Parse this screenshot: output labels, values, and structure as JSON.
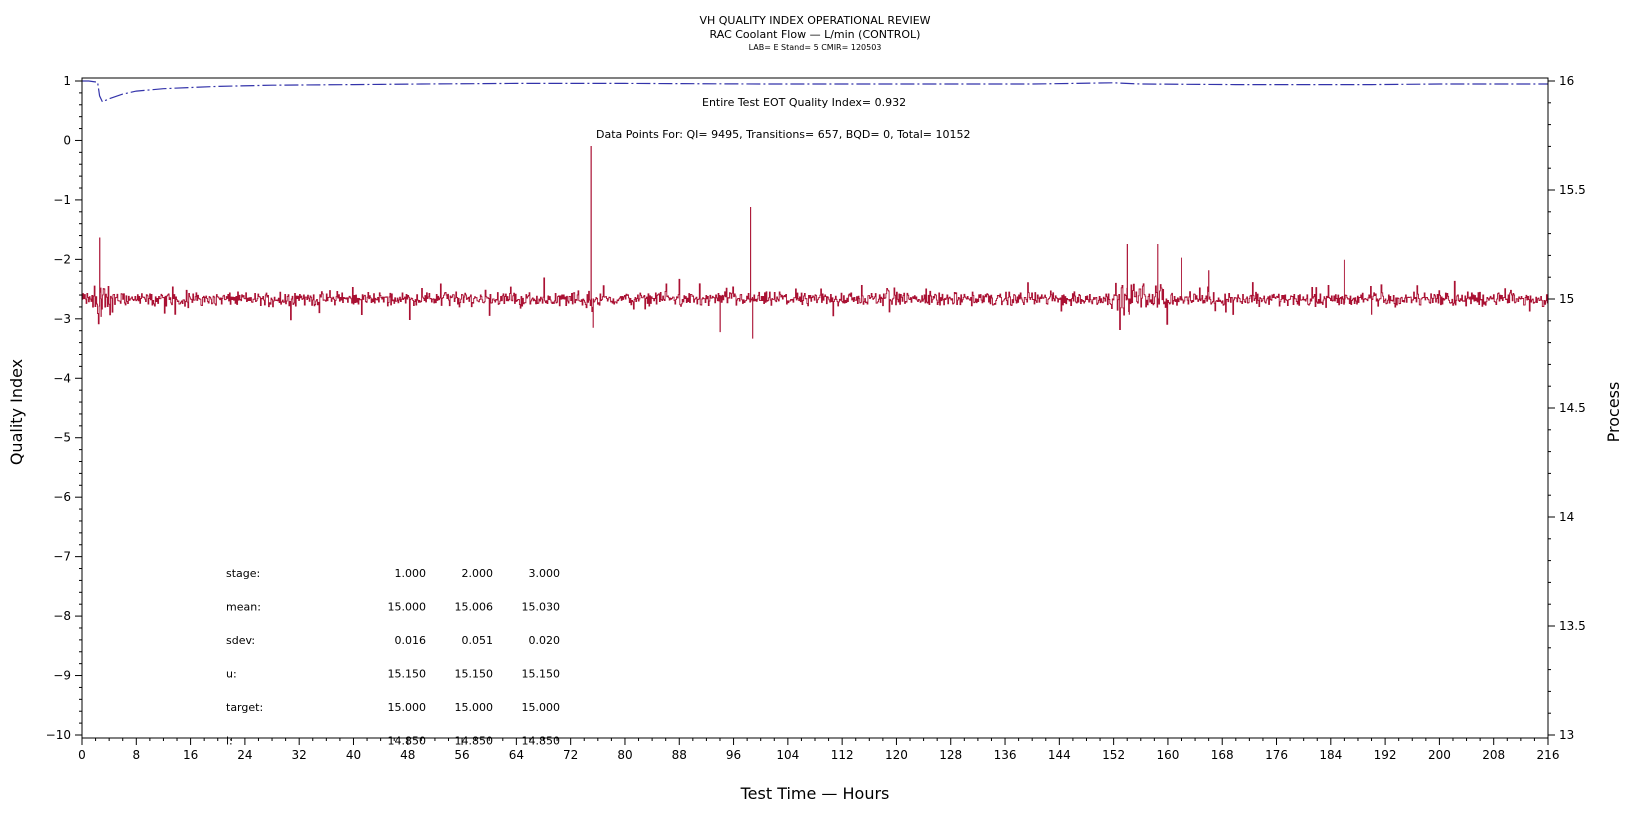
{
  "titles": {
    "line1": "VH QUALITY INDEX OPERATIONAL REVIEW",
    "line2": "RAC Coolant Flow — L/min (CONTROL)",
    "line3": "LAB= E Stand= 5 CMIR= 120503"
  },
  "annotations": {
    "eot": "Entire Test EOT Quality Index=   0.932",
    "datapoints": "Data Points For: QI=  9495, Transitions=   657, BQD=     0, Total= 10152"
  },
  "stats_table": {
    "rows": [
      {
        "label": "stage:",
        "values": [
          "1.000",
          "2.000",
          "3.000"
        ]
      },
      {
        "label": "mean:",
        "values": [
          "15.000",
          "15.006",
          "15.030"
        ]
      },
      {
        "label": "sdev:",
        "values": [
          "0.016",
          "0.051",
          "0.020"
        ]
      },
      {
        "label": "u:",
        "values": [
          "15.150",
          "15.150",
          "15.150"
        ]
      },
      {
        "label": "target:",
        "values": [
          "15.000",
          "15.000",
          "15.000"
        ]
      },
      {
        "label": "l:",
        "values": [
          "14.850",
          "14.850",
          "14.850"
        ]
      }
    ]
  },
  "chart_data": {
    "type": "line",
    "xlabel": "Test Time — Hours",
    "ylabel": "Quality Index",
    "y2label": "Process",
    "xlim": [
      0,
      216
    ],
    "ylim": [
      -10,
      1
    ],
    "y2lim": [
      13,
      16
    ],
    "x_ticks": [
      "0",
      "8",
      "16",
      "24",
      "32",
      "40",
      "48",
      "56",
      "64",
      "72",
      "80",
      "88",
      "96",
      "104",
      "112",
      "120",
      "128",
      "136",
      "144",
      "152",
      "160",
      "168",
      "176",
      "184",
      "192",
      "200",
      "208",
      "216"
    ],
    "y_ticks": [
      "1",
      "0",
      "−1",
      "−2",
      "−3",
      "−4",
      "−5",
      "−6",
      "−7",
      "−8",
      "−9",
      "−10"
    ],
    "y2_ticks": [
      "16",
      "15.5",
      "15",
      "14.5",
      "14",
      "13.5",
      "13"
    ],
    "series": [
      {
        "axis": "left",
        "color": "#3333aa",
        "style": "dash-dot",
        "points": [
          [
            0,
            1.0
          ],
          [
            1,
            1.0
          ],
          [
            2.3,
            0.98
          ],
          [
            2.6,
            0.75
          ],
          [
            3,
            0.65
          ],
          [
            4,
            0.7
          ],
          [
            6,
            0.78
          ],
          [
            8,
            0.83
          ],
          [
            12,
            0.87
          ],
          [
            16,
            0.89
          ],
          [
            20,
            0.91
          ],
          [
            28,
            0.93
          ],
          [
            40,
            0.94
          ],
          [
            50,
            0.95
          ],
          [
            64,
            0.96
          ],
          [
            80,
            0.96
          ],
          [
            100,
            0.95
          ],
          [
            120,
            0.95
          ],
          [
            140,
            0.95
          ],
          [
            146,
            0.96
          ],
          [
            152,
            0.97
          ],
          [
            156,
            0.95
          ],
          [
            170,
            0.94
          ],
          [
            190,
            0.94
          ],
          [
            200,
            0.95
          ],
          [
            216,
            0.95
          ]
        ]
      },
      {
        "axis": "right",
        "color": "#aa1133",
        "style": "solid",
        "baseline": 15.0,
        "noise": 0.018,
        "spikes": [
          [
            2.6,
            15.28
          ],
          [
            2.8,
            14.92
          ],
          [
            75,
            15.7
          ],
          [
            75.3,
            14.87
          ],
          [
            94,
            14.85
          ],
          [
            98.5,
            15.42
          ],
          [
            98.8,
            14.82
          ],
          [
            154,
            15.25
          ],
          [
            154.3,
            14.93
          ],
          [
            158.5,
            15.25
          ],
          [
            162,
            15.19
          ],
          [
            166,
            15.13
          ],
          [
            186,
            15.18
          ],
          [
            190,
            14.93
          ]
        ]
      }
    ]
  }
}
